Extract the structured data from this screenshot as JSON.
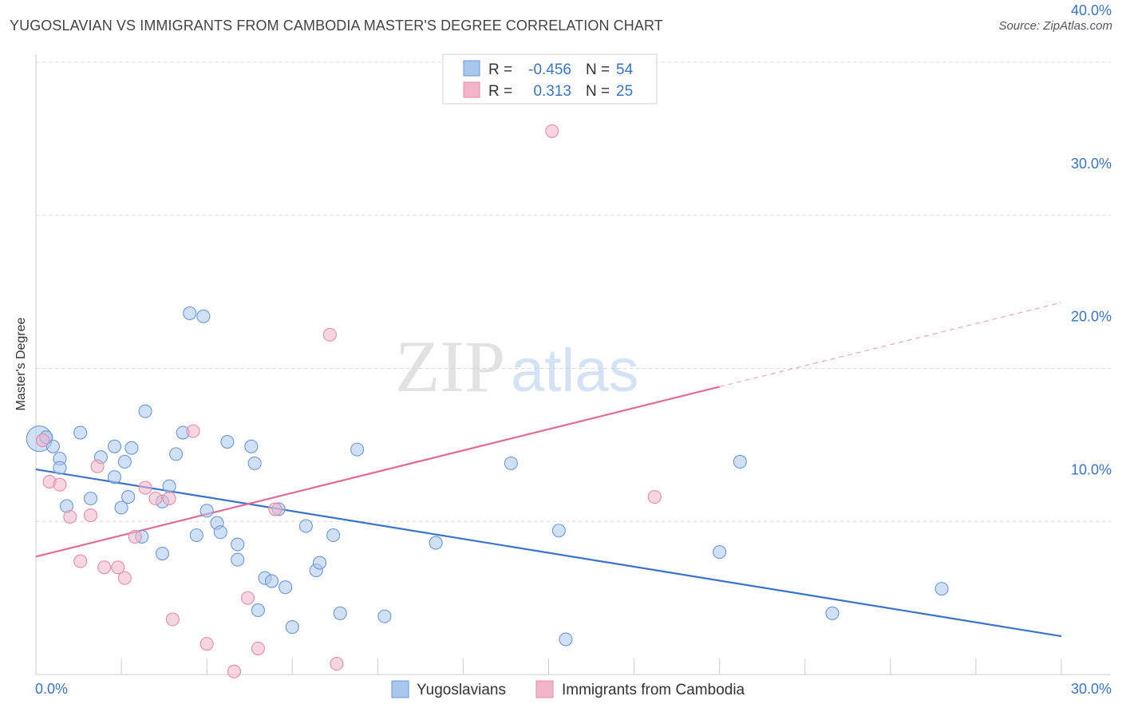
{
  "title": "YUGOSLAVIAN VS IMMIGRANTS FROM CAMBODIA MASTER'S DEGREE CORRELATION CHART",
  "source": "Source: ZipAtlas.com",
  "watermark": {
    "zip": "ZIP",
    "atlas": "atlas"
  },
  "colors": {
    "blue": "#3b74c6",
    "blue_fill": "#a9c7ee",
    "pink": "#e06b96",
    "pink_fill": "#f2b4c8",
    "grid": "#d8d8d8"
  },
  "legend": {
    "rows": [
      {
        "r_label": "R = ",
        "r_value": "-0.456",
        "n_label": "N = ",
        "n_value": "54"
      },
      {
        "r_label": "R = ",
        "r_value": "0.313",
        "n_label": "N = ",
        "n_value": "25"
      }
    ]
  },
  "bottom_legend": [
    "Yugoslavians",
    "Immigrants from Cambodia"
  ],
  "chart_data": {
    "type": "scatter",
    "title": "YUGOSLAVIAN VS IMMIGRANTS FROM CAMBODIA MASTER'S DEGREE CORRELATION CHART",
    "xlabel": "",
    "ylabel": "Master's Degree",
    "xlim": [
      0,
      30
    ],
    "ylim": [
      0,
      40
    ],
    "x_tick_labels": [
      "0.0%",
      "30.0%"
    ],
    "y_ticks": [
      10,
      20,
      30,
      40
    ],
    "y_tick_labels": [
      "10.0%",
      "20.0%",
      "30.0%",
      "40.0%"
    ],
    "grid": true,
    "legend_position": "top-center",
    "series": [
      {
        "name": "Yugoslavians",
        "color": "#3b74c6",
        "points": [
          [
            0.1,
            15.4
          ],
          [
            0.5,
            14.9
          ],
          [
            0.7,
            14.1
          ],
          [
            0.9,
            11.0
          ],
          [
            0.7,
            13.5
          ],
          [
            1.3,
            15.8
          ],
          [
            1.6,
            11.5
          ],
          [
            1.9,
            14.2
          ],
          [
            2.3,
            14.9
          ],
          [
            2.3,
            12.9
          ],
          [
            2.5,
            10.9
          ],
          [
            2.7,
            11.6
          ],
          [
            2.8,
            14.8
          ],
          [
            3.1,
            9.0
          ],
          [
            3.2,
            17.2
          ],
          [
            3.7,
            11.3
          ],
          [
            3.7,
            7.9
          ],
          [
            3.9,
            12.3
          ],
          [
            4.1,
            14.4
          ],
          [
            4.3,
            15.8
          ],
          [
            4.5,
            23.6
          ],
          [
            4.7,
            9.1
          ],
          [
            4.9,
            23.4
          ],
          [
            5.0,
            10.7
          ],
          [
            5.3,
            9.9
          ],
          [
            5.4,
            9.3
          ],
          [
            5.6,
            15.2
          ],
          [
            5.9,
            8.5
          ],
          [
            5.9,
            7.5
          ],
          [
            6.3,
            14.9
          ],
          [
            6.4,
            13.8
          ],
          [
            6.5,
            4.2
          ],
          [
            6.7,
            6.3
          ],
          [
            6.9,
            6.1
          ],
          [
            7.1,
            10.8
          ],
          [
            7.3,
            5.7
          ],
          [
            7.5,
            3.1
          ],
          [
            7.9,
            9.7
          ],
          [
            8.2,
            6.8
          ],
          [
            8.3,
            7.3
          ],
          [
            8.7,
            9.1
          ],
          [
            8.9,
            4.0
          ],
          [
            9.4,
            14.7
          ],
          [
            10.2,
            3.8
          ],
          [
            11.7,
            8.6
          ],
          [
            13.9,
            13.8
          ],
          [
            15.3,
            9.4
          ],
          [
            15.5,
            2.3
          ],
          [
            20.0,
            8.0
          ],
          [
            20.6,
            13.9
          ],
          [
            23.3,
            4.0
          ],
          [
            26.5,
            5.6
          ],
          [
            0.3,
            15.5
          ],
          [
            2.6,
            13.9
          ]
        ],
        "trend": {
          "x": [
            0,
            30
          ],
          "y": [
            13.4,
            2.5
          ]
        }
      },
      {
        "name": "Immigrants from Cambodia",
        "color": "#e06b96",
        "points": [
          [
            0.2,
            15.3
          ],
          [
            0.4,
            12.6
          ],
          [
            0.7,
            12.4
          ],
          [
            1.0,
            10.3
          ],
          [
            1.3,
            7.4
          ],
          [
            1.6,
            10.4
          ],
          [
            1.8,
            13.6
          ],
          [
            2.0,
            7.0
          ],
          [
            2.4,
            7.0
          ],
          [
            2.6,
            6.3
          ],
          [
            2.9,
            9.0
          ],
          [
            3.2,
            12.2
          ],
          [
            3.5,
            11.5
          ],
          [
            3.9,
            11.5
          ],
          [
            4.0,
            3.6
          ],
          [
            4.6,
            15.9
          ],
          [
            5.0,
            2.0
          ],
          [
            5.8,
            0.2
          ],
          [
            6.2,
            5.0
          ],
          [
            6.5,
            1.7
          ],
          [
            7.0,
            10.8
          ],
          [
            8.6,
            22.2
          ],
          [
            8.8,
            0.7
          ],
          [
            15.1,
            35.5
          ],
          [
            18.1,
            11.6
          ]
        ],
        "trend": {
          "x": [
            0,
            20.0,
            30
          ],
          "y": [
            7.7,
            18.8,
            24.3
          ]
        }
      }
    ]
  }
}
